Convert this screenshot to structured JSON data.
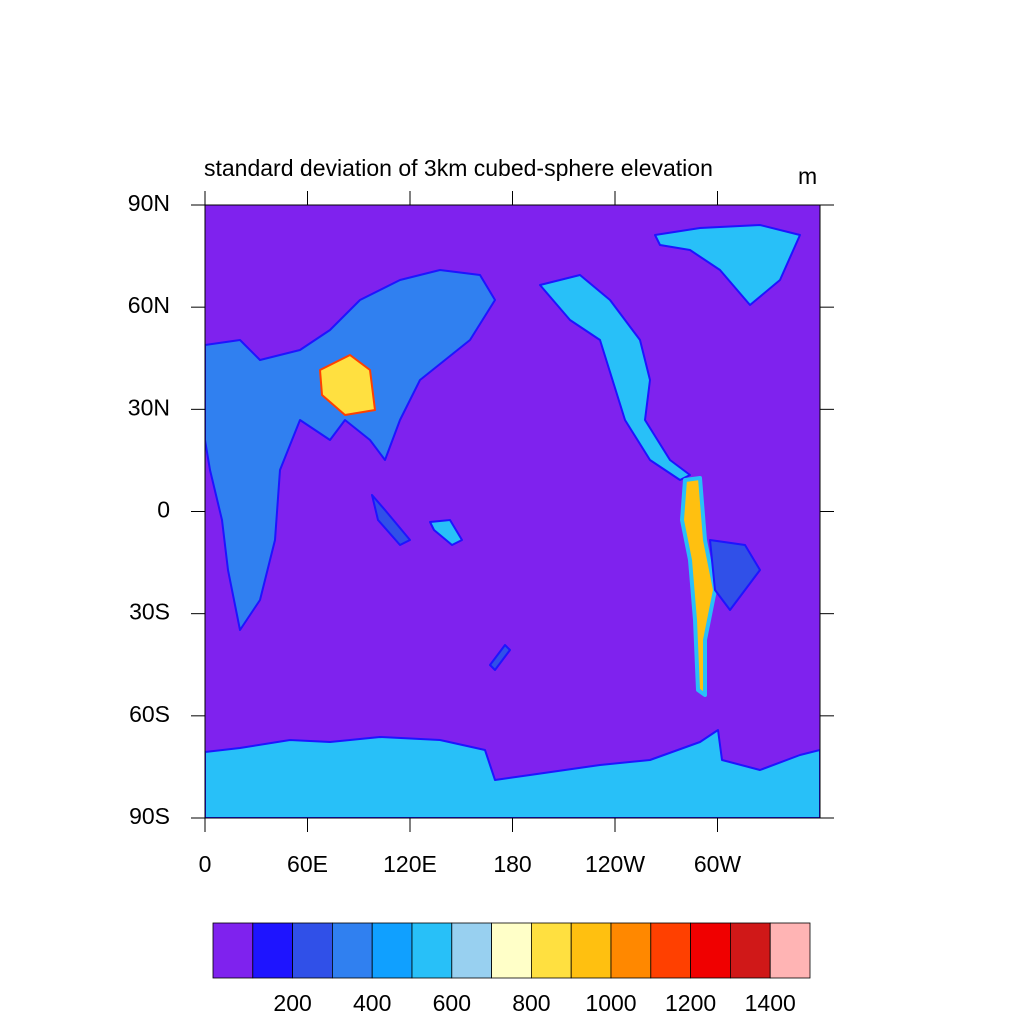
{
  "map": {
    "title": "standard deviation of 3km cubed-sphere elevation",
    "units": "m",
    "xlim": [
      0,
      360
    ],
    "ylim": [
      -90,
      90
    ],
    "xticks": [
      0,
      {
        "value": 60,
        "label": "60E"
      },
      {
        "value": 120,
        "label": "120E"
      },
      180,
      {
        "value": 240,
        "label": "120W"
      },
      {
        "value": 300,
        "label": "60W"
      }
    ],
    "yticks": [
      {
        "value": -90,
        "label": "90S"
      },
      {
        "value": -60,
        "label": "60S"
      },
      {
        "value": -30,
        "label": "30S"
      },
      0,
      {
        "value": 30,
        "label": "30N"
      },
      {
        "value": 60,
        "label": "60N"
      },
      {
        "value": 90,
        "label": "90N"
      }
    ],
    "colorbar": {
      "lim": [
        0,
        1500
      ],
      "ticks": [
        200,
        400,
        600,
        800,
        1000,
        1200,
        1400
      ],
      "colors": [
        "#7f22ee",
        "#1e14ff",
        "#3050e8",
        "#3080f0",
        "#10a0ff",
        "#28c0f8",
        "#98d0f0",
        "#ffffc8",
        "#ffe040",
        "#ffc010",
        "#ff8800",
        "#ff4000",
        "#f00000",
        "#d01818",
        "#ffb4b4"
      ]
    }
  }
}
